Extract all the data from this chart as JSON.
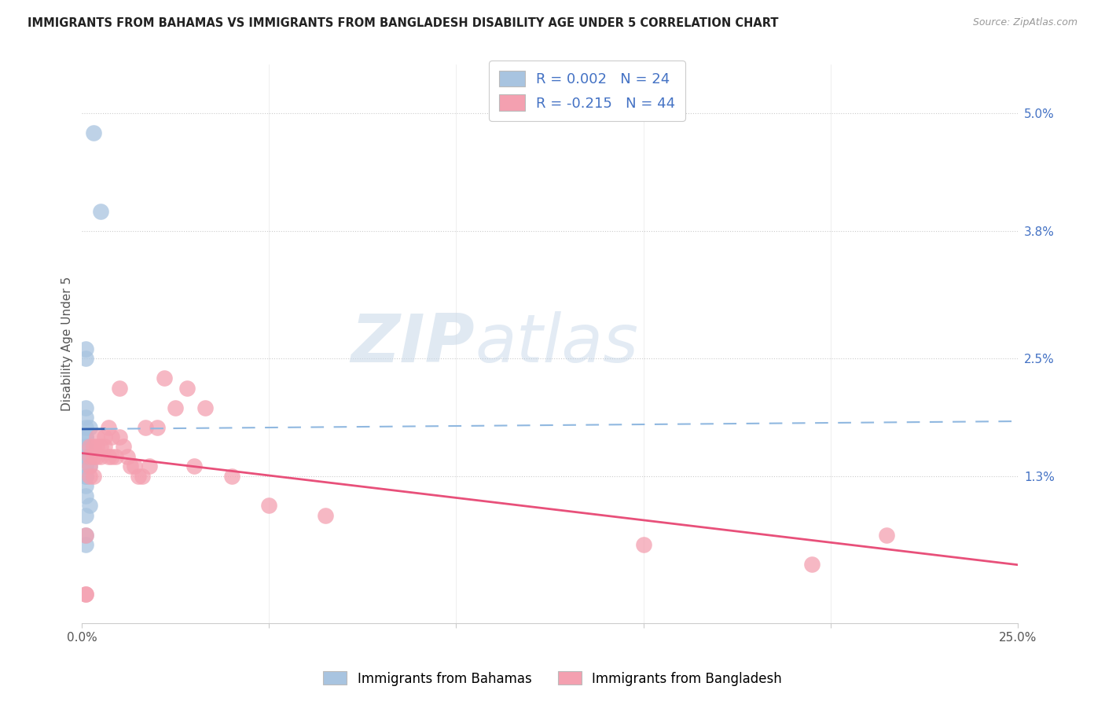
{
  "title": "IMMIGRANTS FROM BAHAMAS VS IMMIGRANTS FROM BANGLADESH DISABILITY AGE UNDER 5 CORRELATION CHART",
  "source": "Source: ZipAtlas.com",
  "ylabel": "Disability Age Under 5",
  "ytick_labels": [
    "5.0%",
    "3.8%",
    "2.5%",
    "1.3%"
  ],
  "ytick_values": [
    0.05,
    0.038,
    0.025,
    0.013
  ],
  "xlim": [
    0.0,
    0.25
  ],
  "ylim": [
    -0.002,
    0.055
  ],
  "legend_label1": "Immigrants from Bahamas",
  "legend_label2": "Immigrants from Bangladesh",
  "R1": 0.002,
  "N1": 24,
  "R2": -0.215,
  "N2": 44,
  "color_bahamas": "#a8c4e0",
  "color_bangladesh": "#f4a0b0",
  "line_color_bahamas_solid": "#3060b0",
  "line_color_bahamas_dash": "#90b8e0",
  "line_color_bangladesh": "#e8507a",
  "watermark_zip": "ZIP",
  "watermark_atlas": "atlas",
  "bahamas_x": [
    0.003,
    0.005,
    0.001,
    0.001,
    0.001,
    0.001,
    0.001,
    0.002,
    0.001,
    0.001,
    0.001,
    0.001,
    0.001,
    0.001,
    0.001,
    0.002,
    0.001,
    0.001,
    0.001,
    0.001,
    0.002,
    0.001,
    0.001,
    0.001
  ],
  "bahamas_y": [
    0.048,
    0.04,
    0.026,
    0.025,
    0.02,
    0.019,
    0.018,
    0.018,
    0.017,
    0.017,
    0.016,
    0.016,
    0.015,
    0.015,
    0.014,
    0.014,
    0.013,
    0.013,
    0.012,
    0.011,
    0.01,
    0.009,
    0.007,
    0.006
  ],
  "bangladesh_x": [
    0.001,
    0.001,
    0.001,
    0.002,
    0.002,
    0.002,
    0.002,
    0.003,
    0.003,
    0.003,
    0.004,
    0.004,
    0.004,
    0.005,
    0.005,
    0.006,
    0.006,
    0.007,
    0.007,
    0.008,
    0.008,
    0.009,
    0.01,
    0.01,
    0.011,
    0.012,
    0.013,
    0.014,
    0.015,
    0.016,
    0.017,
    0.018,
    0.02,
    0.022,
    0.025,
    0.028,
    0.03,
    0.033,
    0.04,
    0.05,
    0.065,
    0.15,
    0.195,
    0.215
  ],
  "bangladesh_y": [
    0.001,
    0.007,
    0.001,
    0.016,
    0.015,
    0.014,
    0.013,
    0.016,
    0.015,
    0.013,
    0.017,
    0.016,
    0.015,
    0.016,
    0.015,
    0.017,
    0.016,
    0.018,
    0.015,
    0.017,
    0.015,
    0.015,
    0.022,
    0.017,
    0.016,
    0.015,
    0.014,
    0.014,
    0.013,
    0.013,
    0.018,
    0.014,
    0.018,
    0.023,
    0.02,
    0.022,
    0.014,
    0.02,
    0.013,
    0.01,
    0.009,
    0.006,
    0.004,
    0.007
  ],
  "bahamas_line_x": [
    0.0,
    0.006,
    0.25
  ],
  "bahamas_line_y": [
    0.0175,
    0.0178,
    0.0185
  ],
  "bangladesh_line_x": [
    0.0,
    0.25
  ],
  "bangladesh_line_y": [
    0.0155,
    0.007
  ]
}
